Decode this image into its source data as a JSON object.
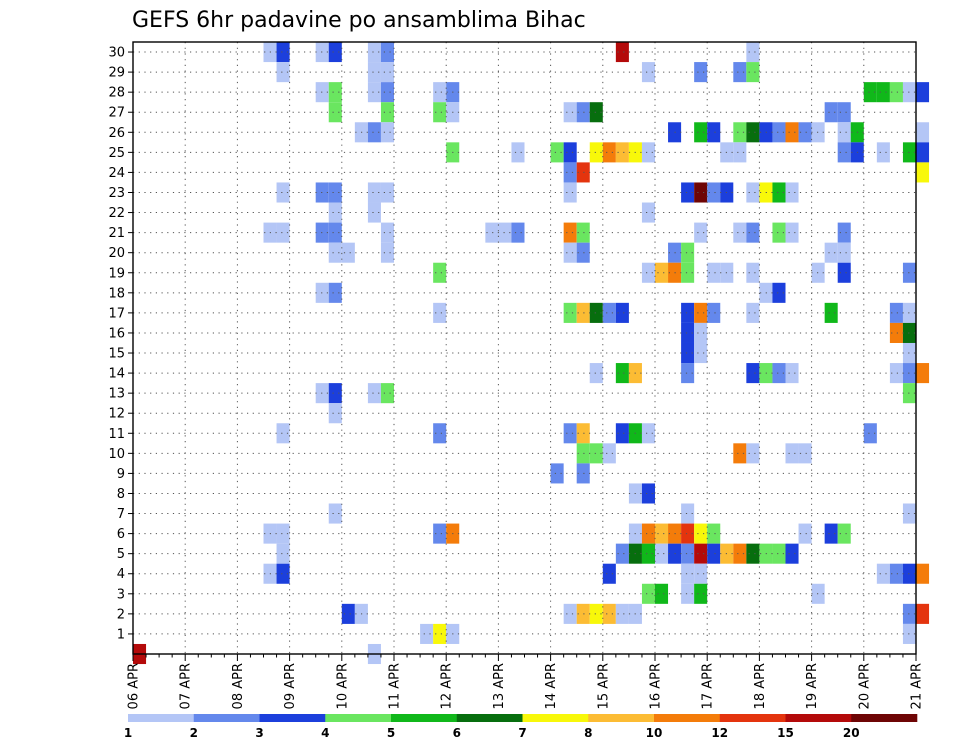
{
  "chart_data": {
    "type": "heatmap",
    "title": "GEFS 6hr padavine po ansamblima Bihac",
    "xlabel": "",
    "ylabel": "",
    "x_ticks": [
      "06 APR",
      "07 APR",
      "08 APR",
      "09 APR",
      "10 APR",
      "11 APR",
      "12 APR",
      "13 APR",
      "14 APR",
      "15 APR",
      "16 APR",
      "17 APR",
      "18 APR",
      "19 APR",
      "20 APR",
      "21 APR"
    ],
    "y_ticks": [
      1,
      2,
      3,
      4,
      5,
      6,
      7,
      8,
      9,
      10,
      11,
      12,
      13,
      14,
      15,
      16,
      17,
      18,
      19,
      20,
      21,
      22,
      23,
      24,
      25,
      26,
      27,
      28,
      29,
      30
    ],
    "ylim": [
      0,
      30
    ],
    "xlim_days": [
      0,
      15
    ],
    "steps_per_day": 4,
    "grid": true,
    "colorbar": {
      "placement": "bottom",
      "labels": [
        "1",
        "2",
        "3",
        "4",
        "5",
        "6",
        "7",
        "8",
        "10",
        "12",
        "15",
        "20"
      ],
      "colors": [
        "#b4c6f6",
        "#6488ec",
        "#1c3fdc",
        "#6ae660",
        "#10b81a",
        "#076e0e",
        "#f8f80a",
        "#fcbc34",
        "#f47c0a",
        "#e4340e",
        "#b40a0a",
        "#6e0505"
      ]
    },
    "cells": [
      [
        10,
        30,
        0
      ],
      [
        11,
        30,
        2
      ],
      [
        14,
        30,
        0
      ],
      [
        15,
        30,
        2
      ],
      [
        18,
        30,
        0
      ],
      [
        19,
        30,
        1
      ],
      [
        37,
        30,
        10
      ],
      [
        47,
        30,
        0
      ],
      [
        11,
        29,
        0
      ],
      [
        18,
        29,
        0
      ],
      [
        19,
        29,
        0
      ],
      [
        39,
        29,
        0
      ],
      [
        43,
        29,
        1
      ],
      [
        46,
        29,
        1
      ],
      [
        47,
        29,
        3
      ],
      [
        14,
        28,
        0
      ],
      [
        15,
        28,
        3
      ],
      [
        18,
        28,
        0
      ],
      [
        19,
        28,
        1
      ],
      [
        23,
        28,
        0
      ],
      [
        24,
        28,
        1
      ],
      [
        56,
        28,
        4
      ],
      [
        57,
        28,
        4
      ],
      [
        58,
        28,
        3
      ],
      [
        59,
        28,
        0
      ],
      [
        60,
        28,
        2
      ],
      [
        15,
        27,
        3
      ],
      [
        19,
        27,
        3
      ],
      [
        23,
        27,
        3
      ],
      [
        24,
        27,
        0
      ],
      [
        33,
        27,
        0
      ],
      [
        34,
        27,
        1
      ],
      [
        35,
        27,
        5
      ],
      [
        53,
        27,
        1
      ],
      [
        54,
        27,
        1
      ],
      [
        17,
        26,
        0
      ],
      [
        18,
        26,
        1
      ],
      [
        19,
        26,
        0
      ],
      [
        41,
        26,
        2
      ],
      [
        43,
        26,
        4
      ],
      [
        44,
        26,
        2
      ],
      [
        46,
        26,
        3
      ],
      [
        47,
        26,
        5
      ],
      [
        48,
        26,
        2
      ],
      [
        49,
        26,
        1
      ],
      [
        50,
        26,
        8
      ],
      [
        51,
        26,
        1
      ],
      [
        52,
        26,
        0
      ],
      [
        54,
        26,
        0
      ],
      [
        55,
        26,
        4
      ],
      [
        60,
        26,
        0
      ],
      [
        24,
        25,
        3
      ],
      [
        29,
        25,
        0
      ],
      [
        32,
        25,
        3
      ],
      [
        33,
        25,
        2
      ],
      [
        35,
        25,
        6
      ],
      [
        36,
        25,
        8
      ],
      [
        37,
        25,
        7
      ],
      [
        38,
        25,
        6
      ],
      [
        39,
        25,
        0
      ],
      [
        45,
        25,
        0
      ],
      [
        46,
        25,
        0
      ],
      [
        54,
        25,
        1
      ],
      [
        55,
        25,
        2
      ],
      [
        57,
        25,
        0
      ],
      [
        59,
        25,
        4
      ],
      [
        60,
        25,
        2
      ],
      [
        33,
        24,
        1
      ],
      [
        34,
        24,
        9
      ],
      [
        60,
        24,
        6
      ],
      [
        11,
        23,
        0
      ],
      [
        14,
        23,
        1
      ],
      [
        15,
        23,
        1
      ],
      [
        18,
        23,
        0
      ],
      [
        19,
        23,
        0
      ],
      [
        33,
        23,
        0
      ],
      [
        42,
        23,
        2
      ],
      [
        43,
        23,
        11
      ],
      [
        44,
        23,
        1
      ],
      [
        45,
        23,
        2
      ],
      [
        47,
        23,
        0
      ],
      [
        48,
        23,
        6
      ],
      [
        49,
        23,
        4
      ],
      [
        50,
        23,
        0
      ],
      [
        15,
        22,
        0
      ],
      [
        18,
        22,
        0
      ],
      [
        39,
        22,
        0
      ],
      [
        10,
        21,
        0
      ],
      [
        11,
        21,
        0
      ],
      [
        14,
        21,
        1
      ],
      [
        15,
        21,
        1
      ],
      [
        19,
        21,
        0
      ],
      [
        27,
        21,
        0
      ],
      [
        28,
        21,
        0
      ],
      [
        29,
        21,
        1
      ],
      [
        33,
        21,
        8
      ],
      [
        34,
        21,
        3
      ],
      [
        43,
        21,
        0
      ],
      [
        46,
        21,
        0
      ],
      [
        47,
        21,
        1
      ],
      [
        49,
        21,
        3
      ],
      [
        50,
        21,
        0
      ],
      [
        54,
        21,
        1
      ],
      [
        15,
        20,
        0
      ],
      [
        16,
        20,
        0
      ],
      [
        19,
        20,
        0
      ],
      [
        33,
        20,
        0
      ],
      [
        34,
        20,
        1
      ],
      [
        41,
        20,
        1
      ],
      [
        42,
        20,
        3
      ],
      [
        53,
        20,
        0
      ],
      [
        54,
        20,
        0
      ],
      [
        23,
        19,
        3
      ],
      [
        39,
        19,
        0
      ],
      [
        40,
        19,
        7
      ],
      [
        41,
        19,
        8
      ],
      [
        42,
        19,
        3
      ],
      [
        44,
        19,
        0
      ],
      [
        45,
        19,
        0
      ],
      [
        47,
        19,
        0
      ],
      [
        52,
        19,
        0
      ],
      [
        54,
        19,
        2
      ],
      [
        59,
        19,
        1
      ],
      [
        14,
        18,
        0
      ],
      [
        15,
        18,
        1
      ],
      [
        48,
        18,
        0
      ],
      [
        49,
        18,
        2
      ],
      [
        23,
        17,
        0
      ],
      [
        33,
        17,
        3
      ],
      [
        34,
        17,
        7
      ],
      [
        35,
        17,
        5
      ],
      [
        36,
        17,
        1
      ],
      [
        37,
        17,
        2
      ],
      [
        42,
        17,
        2
      ],
      [
        43,
        17,
        8
      ],
      [
        44,
        17,
        1
      ],
      [
        47,
        17,
        0
      ],
      [
        53,
        17,
        4
      ],
      [
        58,
        17,
        1
      ],
      [
        59,
        17,
        0
      ],
      [
        42,
        16,
        2
      ],
      [
        43,
        16,
        0
      ],
      [
        58,
        16,
        8
      ],
      [
        59,
        16,
        5
      ],
      [
        42,
        15,
        2
      ],
      [
        43,
        15,
        0
      ],
      [
        59,
        15,
        0
      ],
      [
        35,
        14,
        0
      ],
      [
        37,
        14,
        4
      ],
      [
        38,
        14,
        7
      ],
      [
        42,
        14,
        1
      ],
      [
        47,
        14,
        2
      ],
      [
        48,
        14,
        3
      ],
      [
        49,
        14,
        1
      ],
      [
        50,
        14,
        0
      ],
      [
        58,
        14,
        0
      ],
      [
        59,
        14,
        1
      ],
      [
        60,
        14,
        8
      ],
      [
        14,
        13,
        0
      ],
      [
        15,
        13,
        2
      ],
      [
        18,
        13,
        0
      ],
      [
        19,
        13,
        3
      ],
      [
        59,
        13,
        3
      ],
      [
        15,
        12,
        0
      ],
      [
        11,
        11,
        0
      ],
      [
        23,
        11,
        1
      ],
      [
        33,
        11,
        1
      ],
      [
        34,
        11,
        7
      ],
      [
        37,
        11,
        2
      ],
      [
        38,
        11,
        4
      ],
      [
        39,
        11,
        0
      ],
      [
        56,
        11,
        1
      ],
      [
        34,
        10,
        3
      ],
      [
        35,
        10,
        3
      ],
      [
        36,
        10,
        0
      ],
      [
        46,
        10,
        8
      ],
      [
        47,
        10,
        0
      ],
      [
        50,
        10,
        0
      ],
      [
        51,
        10,
        0
      ],
      [
        32,
        9,
        1
      ],
      [
        34,
        9,
        1
      ],
      [
        38,
        8,
        0
      ],
      [
        39,
        8,
        2
      ],
      [
        15,
        7,
        0
      ],
      [
        42,
        7,
        0
      ],
      [
        59,
        7,
        0
      ],
      [
        10,
        6,
        0
      ],
      [
        11,
        6,
        0
      ],
      [
        23,
        6,
        1
      ],
      [
        24,
        6,
        8
      ],
      [
        38,
        6,
        0
      ],
      [
        39,
        6,
        8
      ],
      [
        40,
        6,
        7
      ],
      [
        41,
        6,
        8
      ],
      [
        42,
        6,
        9
      ],
      [
        43,
        6,
        6
      ],
      [
        44,
        6,
        3
      ],
      [
        51,
        6,
        0
      ],
      [
        53,
        6,
        2
      ],
      [
        54,
        6,
        3
      ],
      [
        11,
        5,
        0
      ],
      [
        37,
        5,
        1
      ],
      [
        38,
        5,
        5
      ],
      [
        39,
        5,
        4
      ],
      [
        40,
        5,
        0
      ],
      [
        41,
        5,
        2
      ],
      [
        42,
        5,
        1
      ],
      [
        43,
        5,
        10
      ],
      [
        44,
        5,
        2
      ],
      [
        45,
        5,
        7
      ],
      [
        46,
        5,
        8
      ],
      [
        47,
        5,
        5
      ],
      [
        48,
        5,
        3
      ],
      [
        49,
        5,
        3
      ],
      [
        50,
        5,
        2
      ],
      [
        10,
        4,
        0
      ],
      [
        11,
        4,
        2
      ],
      [
        36,
        4,
        2
      ],
      [
        42,
        4,
        0
      ],
      [
        43,
        4,
        0
      ],
      [
        57,
        4,
        0
      ],
      [
        58,
        4,
        1
      ],
      [
        59,
        4,
        2
      ],
      [
        60,
        4,
        8
      ],
      [
        39,
        3,
        3
      ],
      [
        40,
        3,
        4
      ],
      [
        42,
        3,
        0
      ],
      [
        43,
        3,
        4
      ],
      [
        52,
        3,
        0
      ],
      [
        16,
        2,
        2
      ],
      [
        17,
        2,
        0
      ],
      [
        33,
        2,
        0
      ],
      [
        34,
        2,
        7
      ],
      [
        35,
        2,
        6
      ],
      [
        36,
        2,
        7
      ],
      [
        37,
        2,
        0
      ],
      [
        38,
        2,
        0
      ],
      [
        59,
        2,
        1
      ],
      [
        60,
        2,
        9
      ],
      [
        22,
        1,
        0
      ],
      [
        23,
        1,
        6
      ],
      [
        24,
        1,
        0
      ],
      [
        59,
        1,
        0
      ],
      [
        18,
        0,
        0
      ],
      [
        0,
        0,
        10
      ]
    ]
  }
}
